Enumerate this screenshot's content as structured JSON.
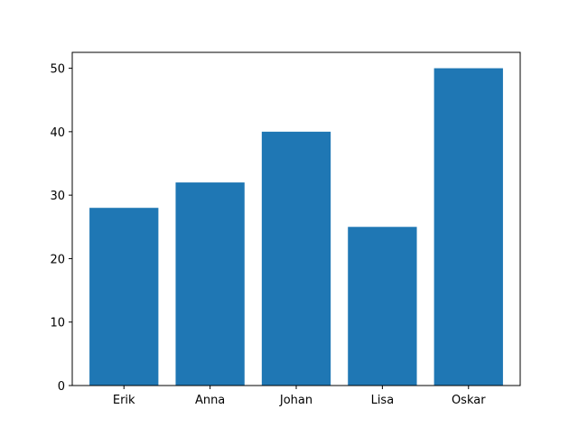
{
  "chart_data": {
    "type": "bar",
    "title": "",
    "xlabel": "",
    "ylabel": "",
    "categories": [
      "Erik",
      "Anna",
      "Johan",
      "Lisa",
      "Oskar"
    ],
    "values": [
      28,
      32,
      40,
      25,
      50
    ],
    "ylim": [
      0,
      52.5
    ],
    "yticks": [
      0,
      10,
      20,
      30,
      40,
      50
    ],
    "grid": false,
    "legend": "none",
    "bar_color": "#1f77b4"
  }
}
